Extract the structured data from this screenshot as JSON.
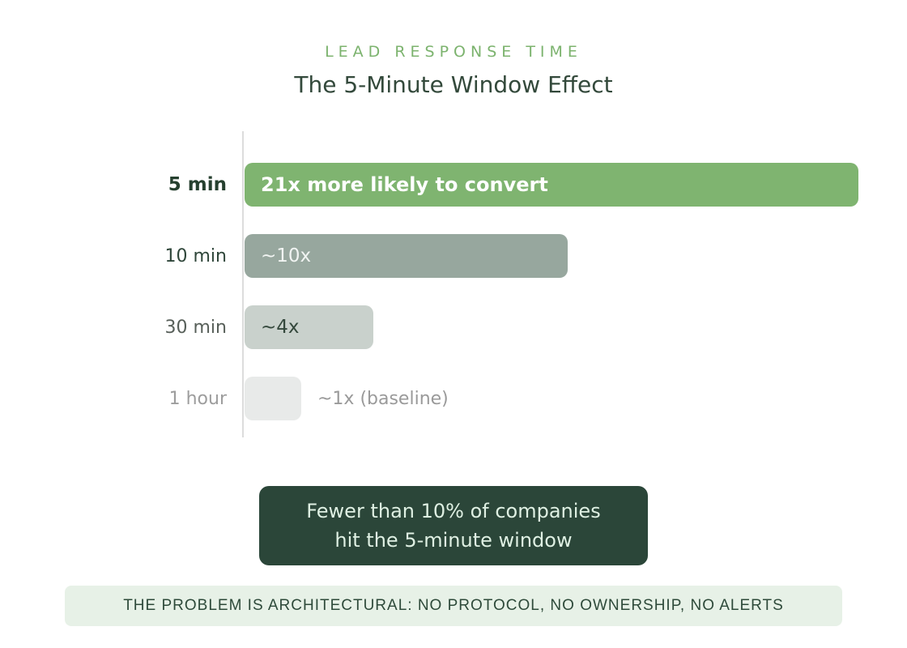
{
  "header": {
    "eyebrow": "LEAD RESPONSE TIME",
    "title": "The 5-Minute Window Effect"
  },
  "chart_data": {
    "type": "bar",
    "orientation": "horizontal",
    "title": "The 5-Minute Window Effect",
    "categories": [
      "5 min",
      "10 min",
      "30 min",
      "1 hour"
    ],
    "values": [
      21,
      10,
      4,
      1
    ],
    "unit": "x relative likelihood to convert",
    "bar_labels": [
      "21x more likely to convert",
      "~10x",
      "~4x",
      "~1x (baseline)"
    ],
    "bar_colors": [
      "#7fb470",
      "#97a79e",
      "#c9d1cc",
      "#e8eae9"
    ],
    "bar_styles": [
      "width:758px;background:#7fb470",
      "width:399px;background:#97a79e",
      "width:159px;background:#c9d1cc",
      "width:70px;background:#e8eae9"
    ],
    "axis_line_color": "#dcdcdc",
    "legend": "none",
    "grid": false
  },
  "callout": {
    "line1": "Fewer than 10% of companies",
    "line2": "hit the 5-minute window"
  },
  "footer": {
    "text": "THE PROBLEM IS ARCHITECTURAL: NO PROTOCOL, NO OWNERSHIP, NO ALERTS"
  },
  "colors": {
    "accent_green": "#7fb470",
    "eyebrow_green": "#7cb36e",
    "dark_text": "#33493b",
    "callout_bg": "#2b4639",
    "callout_text": "#dff0e3",
    "footer_bg": "#e7f1e7",
    "footer_text": "#2e4a3a"
  }
}
